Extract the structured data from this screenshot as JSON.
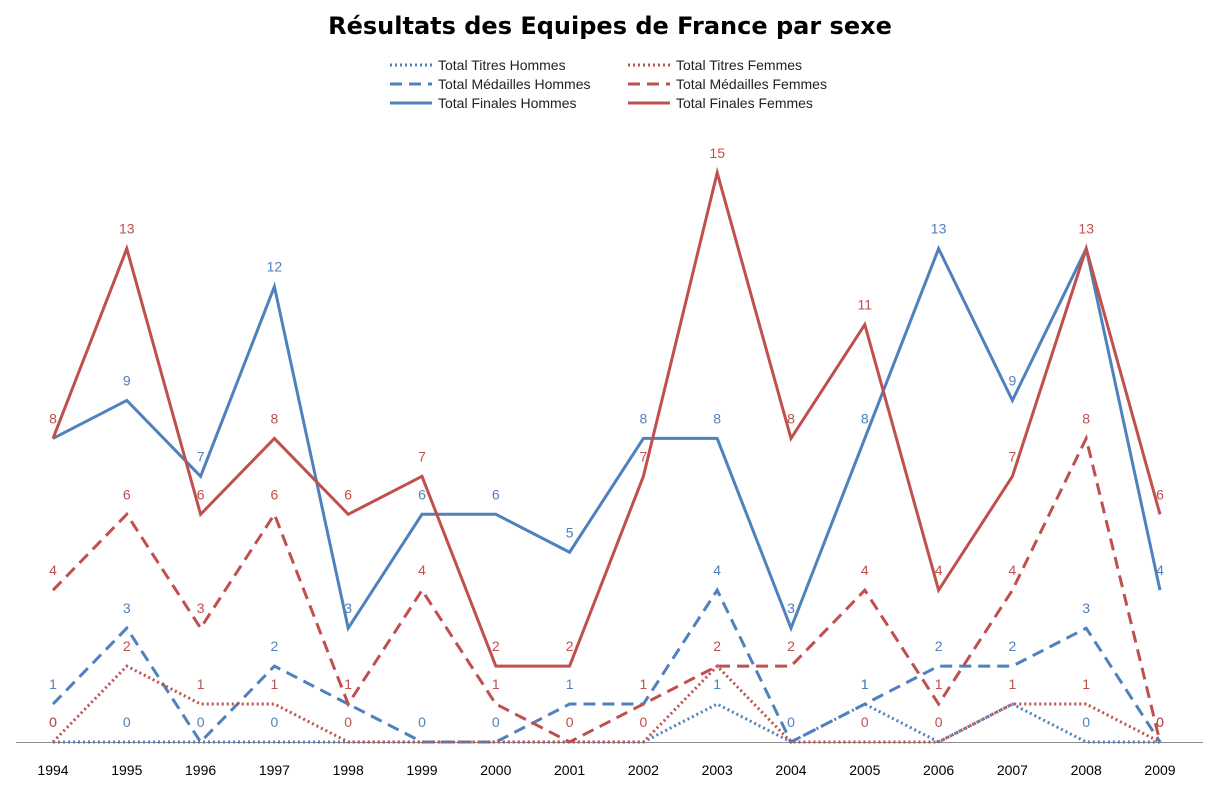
{
  "chart_data": {
    "type": "line",
    "title": "Résultats des Equipes de France par sexe",
    "xlabel": "",
    "ylabel": "",
    "ylim": [
      0,
      15
    ],
    "grid": false,
    "legend_position": "top",
    "categories": [
      "1994",
      "1995",
      "1996",
      "1997",
      "1998",
      "1999",
      "2000",
      "2001",
      "2002",
      "2003",
      "2004",
      "2005",
      "2006",
      "2007",
      "2008",
      "2009"
    ],
    "series": [
      {
        "name": "Total Titres Hommes",
        "color": "#4F81BD",
        "style": "dotted",
        "values": [
          0,
          0,
          0,
          0,
          0,
          0,
          0,
          0,
          0,
          1,
          0,
          1,
          0,
          1,
          0,
          0
        ]
      },
      {
        "name": "Total Médailles Hommes",
        "color": "#4F81BD",
        "style": "dashed",
        "values": [
          1,
          3,
          0,
          2,
          1,
          0,
          0,
          1,
          1,
          4,
          0,
          1,
          2,
          2,
          3,
          0
        ]
      },
      {
        "name": "Total Finales Hommes",
        "color": "#4F81BD",
        "style": "solid",
        "values": [
          8,
          9,
          7,
          12,
          3,
          6,
          6,
          5,
          8,
          8,
          3,
          8,
          13,
          9,
          13,
          4
        ]
      },
      {
        "name": "Total Titres Femmes",
        "color": "#C0504D",
        "style": "dotted",
        "values": [
          0,
          2,
          1,
          1,
          0,
          0,
          0,
          0,
          0,
          2,
          0,
          0,
          0,
          1,
          1,
          0
        ]
      },
      {
        "name": "Total Médailles Femmes",
        "color": "#C0504D",
        "style": "dashed",
        "values": [
          4,
          6,
          3,
          6,
          1,
          4,
          1,
          0,
          1,
          2,
          2,
          4,
          1,
          4,
          8,
          0
        ]
      },
      {
        "name": "Total Finales Femmes",
        "color": "#C0504D",
        "style": "solid",
        "values": [
          8,
          13,
          6,
          8,
          6,
          7,
          2,
          2,
          7,
          15,
          8,
          11,
          4,
          7,
          13,
          6
        ]
      }
    ],
    "labels_shown": {
      "Total Titres Hommes": [
        0,
        0,
        0,
        0,
        null,
        0,
        0,
        null,
        null,
        1,
        0,
        1,
        null,
        null,
        0,
        0
      ],
      "Total Médailles Hommes": [
        1,
        3,
        null,
        2,
        null,
        null,
        null,
        1,
        null,
        4,
        null,
        1,
        2,
        2,
        3,
        null
      ],
      "Total Finales Hommes": [
        null,
        9,
        7,
        12,
        3,
        6,
        6,
        5,
        8,
        8,
        3,
        8,
        13,
        9,
        null,
        4
      ],
      "Total Titres Femmes": [
        0,
        2,
        1,
        1,
        0,
        null,
        null,
        0,
        0,
        2,
        null,
        0,
        0,
        1,
        1,
        0
      ],
      "Total Médailles Femmes": [
        4,
        6,
        3,
        6,
        1,
        4,
        1,
        null,
        1,
        null,
        2,
        4,
        1,
        4,
        8,
        0
      ],
      "Total Finales Femmes": [
        8,
        13,
        6,
        8,
        6,
        7,
        2,
        2,
        7,
        15,
        8,
        11,
        4,
        7,
        13,
        6
      ]
    }
  }
}
